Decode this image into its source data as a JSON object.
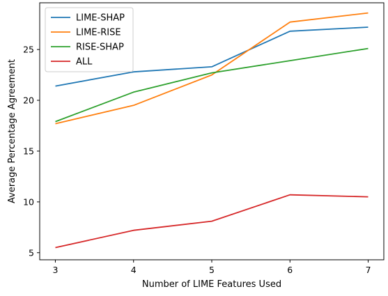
{
  "chart_data": {
    "type": "line",
    "title": "",
    "xlabel": "Number of LIME Features Used",
    "ylabel": "Average Percentage Agreement",
    "x": [
      3,
      4,
      5,
      6,
      7
    ],
    "x_ticks": [
      "3",
      "4",
      "5",
      "6",
      "7"
    ],
    "y_ticks": [
      5,
      10,
      15,
      20,
      25
    ],
    "xlim": [
      2.8,
      7.2
    ],
    "ylim": [
      4.3,
      29.6
    ],
    "grid": false,
    "legend_position": "top-left",
    "series": [
      {
        "name": "LIME-SHAP",
        "color": "#1f77b4",
        "values": [
          21.4,
          22.8,
          23.3,
          26.8,
          27.2
        ]
      },
      {
        "name": "LIME-RISE",
        "color": "#ff7f0e",
        "values": [
          17.7,
          19.5,
          22.5,
          27.7,
          28.6
        ]
      },
      {
        "name": "RISE-SHAP",
        "color": "#2ca02c",
        "values": [
          17.9,
          20.8,
          22.7,
          23.9,
          25.1
        ]
      },
      {
        "name": "ALL",
        "color": "#d62728",
        "values": [
          5.5,
          7.2,
          8.1,
          10.7,
          10.5
        ]
      }
    ]
  }
}
